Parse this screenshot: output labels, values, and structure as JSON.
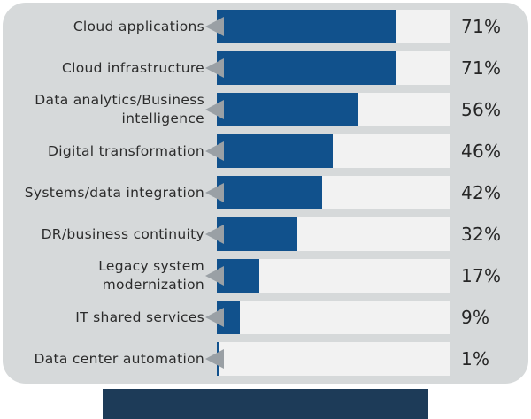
{
  "chart_data": {
    "type": "bar",
    "orientation": "horizontal",
    "title": "",
    "categories": [
      "Cloud applications",
      "Cloud infrastructure",
      "Data analytics/Business intelligence",
      "Digital transformation",
      "Systems/data integration",
      "DR/business continuity",
      "Legacy system modernization",
      "IT shared services",
      "Data center automation"
    ],
    "values": [
      71,
      71,
      56,
      46,
      42,
      32,
      17,
      9,
      1
    ],
    "unit": "%",
    "xlim": [
      0,
      100
    ],
    "grid": false,
    "legend": false,
    "colors": {
      "bar": "#11518c",
      "bar_track": "#f2f2f2",
      "panel_background": "#d6d9da",
      "pointer": "#9aa0a5",
      "footer": "#1d3b58",
      "text": "#2b2b2b"
    }
  },
  "rows": [
    {
      "label": "Cloud applications",
      "value": 71,
      "value_label": "71%"
    },
    {
      "label": "Cloud infrastructure",
      "value": 71,
      "value_label": "71%"
    },
    {
      "label": "Data analytics/Business\nintelligence",
      "value": 56,
      "value_label": "56%"
    },
    {
      "label": "Digital transformation",
      "value": 46,
      "value_label": "46%"
    },
    {
      "label": "Systems/data integration",
      "value": 42,
      "value_label": "42%"
    },
    {
      "label": "DR/business continuity",
      "value": 32,
      "value_label": "32%"
    },
    {
      "label": "Legacy system\nmodernization",
      "value": 17,
      "value_label": "17%"
    },
    {
      "label": "IT shared services",
      "value": 9,
      "value_label": "9%"
    },
    {
      "label": "Data center automation",
      "value": 1,
      "value_label": "1%"
    }
  ]
}
